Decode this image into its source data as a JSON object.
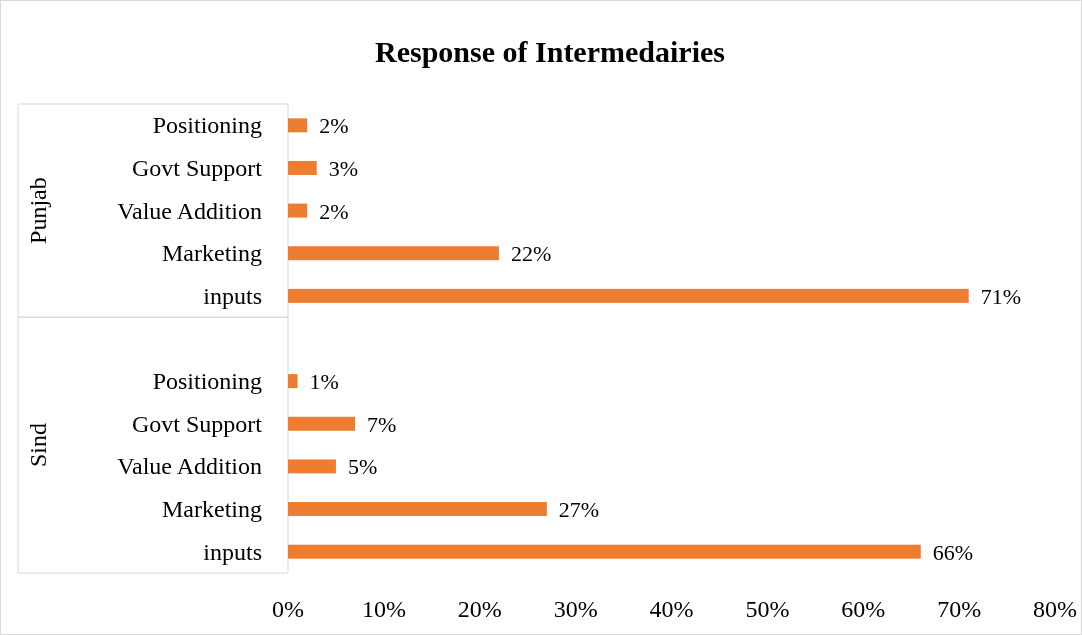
{
  "chart_data": {
    "type": "bar",
    "orientation": "horizontal",
    "title": "Response of Intermedairies",
    "categories": [
      "Positioning",
      "Govt Support",
      "Value Addition",
      "Marketing",
      "inputs",
      "Positioning",
      "Govt Support",
      "Value Addition",
      "Marketing",
      "inputs"
    ],
    "values": [
      2,
      3,
      2,
      22,
      71,
      1,
      7,
      5,
      27,
      66
    ],
    "value_labels": [
      "2%",
      "3%",
      "2%",
      "22%",
      "71%",
      "1%",
      "7%",
      "5%",
      "27%",
      "66%"
    ],
    "color": "#ed7d31",
    "xlim": [
      0,
      80
    ],
    "xticks": [
      {
        "value": 0,
        "label": "0%"
      },
      {
        "value": 10,
        "label": "10%"
      },
      {
        "value": 20,
        "label": "20%"
      },
      {
        "value": 30,
        "label": "30%"
      },
      {
        "value": 40,
        "label": "40%"
      },
      {
        "value": 50,
        "label": "50%"
      },
      {
        "value": 60,
        "label": "60%"
      },
      {
        "value": 70,
        "label": "70%"
      },
      {
        "value": 80,
        "label": "80%"
      }
    ],
    "annotations": [
      "Punjab",
      "Sind"
    ],
    "grid": false
  }
}
